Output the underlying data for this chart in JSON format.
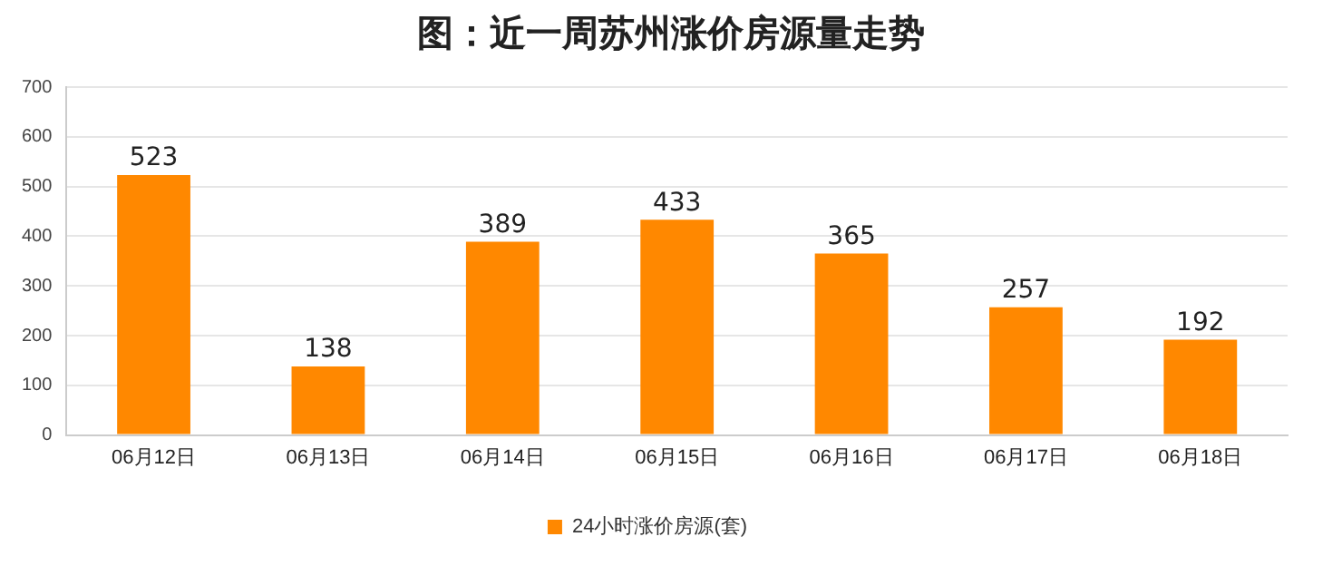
{
  "chart_data": {
    "type": "bar",
    "title": "图：近一周苏州涨价房源量走势",
    "categories": [
      "06月12日",
      "06月13日",
      "06月14日",
      "06月15日",
      "06月16日",
      "06月17日",
      "06月18日"
    ],
    "series": [
      {
        "name": "24小时涨价房源(套)",
        "color": "#ff8800",
        "values": [
          523,
          138,
          389,
          433,
          365,
          257,
          192
        ]
      }
    ],
    "ylim": [
      0,
      700
    ],
    "yticks": [
      0,
      100,
      200,
      300,
      400,
      500,
      600,
      700
    ],
    "grid": "y",
    "legend": "bottom",
    "data_labels": true
  }
}
